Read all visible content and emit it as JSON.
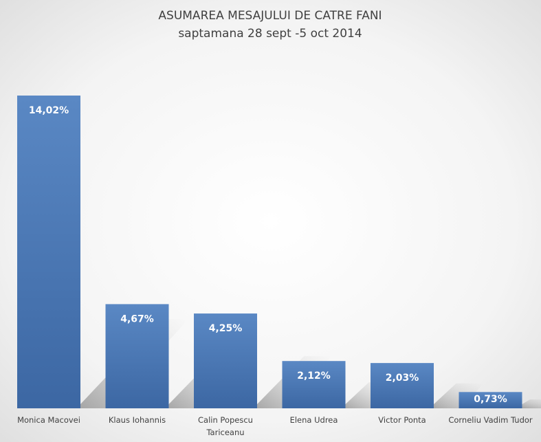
{
  "chart_data": {
    "type": "bar",
    "title": "ASUMAREA MESAJULUI DE CATRE FANI",
    "subtitle": "saptamana 28 sept -5 oct 2014",
    "categories": [
      "Monica Macovei",
      "Klaus Iohannis",
      "Calin Popescu Tariceanu",
      "Elena Udrea",
      "Victor Ponta",
      "Corneliu Vadim Tudor"
    ],
    "category_lines": [
      [
        "Monica Macovei"
      ],
      [
        "Klaus Iohannis"
      ],
      [
        "Calin Popescu",
        "Tariceanu"
      ],
      [
        "Elena Udrea"
      ],
      [
        "Victor Ponta"
      ],
      [
        "Corneliu Vadim Tudor"
      ]
    ],
    "values": [
      14.02,
      4.67,
      4.25,
      2.12,
      2.03,
      0.73
    ],
    "data_labels": [
      "14,02%",
      "4,67%",
      "4,25%",
      "2,12%",
      "2,03%",
      "0,73%"
    ],
    "ylim": [
      0,
      14.02
    ],
    "xlabel": "",
    "ylabel": "",
    "grid": false,
    "legend": "none",
    "colors": {
      "bar_top": "#5a88c4",
      "bar_bottom": "#3c67a3",
      "background_center": "#ffffff",
      "background_edge": "#d9d9d9",
      "text": "#404040",
      "shadow": "#b3b3b3"
    }
  }
}
